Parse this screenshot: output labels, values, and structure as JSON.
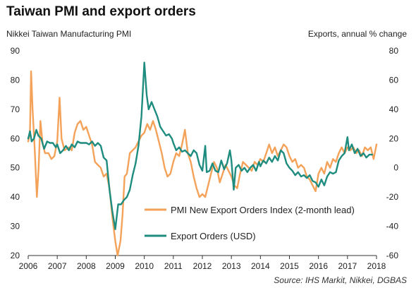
{
  "chart_data": {
    "type": "line",
    "title": "Taiwan PMI and export orders",
    "left_axis_label": "Nikkei Taiwan Manufacturing PMI",
    "right_axis_label": "Exports, annual % change",
    "source": "Source: IHS Markit, Nikkei, DGBAS",
    "x_ticks": [
      "2006",
      "2007",
      "2008",
      "2009",
      "2010",
      "2011",
      "2012",
      "2013",
      "2014",
      "2015",
      "2016",
      "2017",
      "2018"
    ],
    "y_left_ticks": [
      "90",
      "80",
      "70",
      "60",
      "50",
      "40",
      "30",
      "20"
    ],
    "y_right_ticks": [
      "80",
      "60",
      "40",
      "20",
      "0",
      "-20",
      "-40",
      "-60"
    ],
    "y_left_range": [
      20,
      90
    ],
    "y_right_range": [
      -60,
      80
    ],
    "x_range": [
      2006.0,
      2018.0
    ],
    "grid": false,
    "legend_position": "bottom-center",
    "series": [
      {
        "name": "PMI New Export Orders Index (2-month lead)",
        "axis": "left",
        "color": "#F4A259",
        "points": [
          [
            2006.0,
            59.0
          ],
          [
            2006.06,
            62.0
          ],
          [
            2006.1,
            83.0
          ],
          [
            2006.15,
            70.0
          ],
          [
            2006.22,
            57.0
          ],
          [
            2006.3,
            40.0
          ],
          [
            2006.36,
            50.0
          ],
          [
            2006.42,
            66.0
          ],
          [
            2006.5,
            58.0
          ],
          [
            2006.58,
            55.0
          ],
          [
            2006.7,
            55.0
          ],
          [
            2006.8,
            53.0
          ],
          [
            2006.9,
            54.0
          ],
          [
            2007.0,
            59.0
          ],
          [
            2007.08,
            74.0
          ],
          [
            2007.15,
            60.0
          ],
          [
            2007.25,
            56.0
          ],
          [
            2007.4,
            57.0
          ],
          [
            2007.5,
            56.0
          ],
          [
            2007.6,
            62.0
          ],
          [
            2007.7,
            65.0
          ],
          [
            2007.8,
            66.0
          ],
          [
            2007.9,
            63.0
          ],
          [
            2008.0,
            64.0
          ],
          [
            2008.1,
            61.0
          ],
          [
            2008.2,
            58.0
          ],
          [
            2008.3,
            52.0
          ],
          [
            2008.4,
            51.0
          ],
          [
            2008.5,
            50.0
          ],
          [
            2008.6,
            47.0
          ],
          [
            2008.7,
            48.0
          ],
          [
            2008.8,
            43.0
          ],
          [
            2008.9,
            33.0
          ],
          [
            2009.0,
            25.0
          ],
          [
            2009.08,
            20.0
          ],
          [
            2009.18,
            25.0
          ],
          [
            2009.25,
            34.0
          ],
          [
            2009.32,
            47.0
          ],
          [
            2009.4,
            48.0
          ],
          [
            2009.5,
            55.0
          ],
          [
            2009.6,
            56.0
          ],
          [
            2009.7,
            57.0
          ],
          [
            2009.8,
            59.0
          ],
          [
            2009.9,
            61.0
          ],
          [
            2010.0,
            62.0
          ],
          [
            2010.1,
            65.0
          ],
          [
            2010.2,
            63.0
          ],
          [
            2010.3,
            66.0
          ],
          [
            2010.4,
            63.0
          ],
          [
            2010.5,
            59.0
          ],
          [
            2010.6,
            55.0
          ],
          [
            2010.7,
            50.0
          ],
          [
            2010.8,
            47.0
          ],
          [
            2010.9,
            48.0
          ],
          [
            2011.0,
            52.0
          ],
          [
            2011.1,
            55.0
          ],
          [
            2011.2,
            54.0
          ],
          [
            2011.3,
            58.0
          ],
          [
            2011.4,
            63.0
          ],
          [
            2011.5,
            55.0
          ],
          [
            2011.6,
            52.0
          ],
          [
            2011.7,
            47.0
          ],
          [
            2011.8,
            43.0
          ],
          [
            2011.9,
            40.0
          ],
          [
            2012.0,
            41.0
          ],
          [
            2012.1,
            40.0
          ],
          [
            2012.2,
            44.0
          ],
          [
            2012.3,
            48.0
          ],
          [
            2012.4,
            52.0
          ],
          [
            2012.5,
            50.0
          ],
          [
            2012.6,
            45.0
          ],
          [
            2012.7,
            48.0
          ],
          [
            2012.8,
            51.0
          ],
          [
            2012.9,
            49.0
          ],
          [
            2013.0,
            47.0
          ],
          [
            2013.1,
            44.0
          ],
          [
            2013.2,
            43.0
          ],
          [
            2013.3,
            48.0
          ],
          [
            2013.4,
            52.0
          ],
          [
            2013.5,
            51.0
          ],
          [
            2013.6,
            50.0
          ],
          [
            2013.7,
            49.0
          ],
          [
            2013.8,
            52.0
          ],
          [
            2013.9,
            51.0
          ],
          [
            2014.0,
            53.0
          ],
          [
            2014.1,
            52.0
          ],
          [
            2014.2,
            55.0
          ],
          [
            2014.3,
            58.0
          ],
          [
            2014.4,
            55.0
          ],
          [
            2014.5,
            57.0
          ],
          [
            2014.6,
            54.0
          ],
          [
            2014.7,
            56.0
          ],
          [
            2014.8,
            58.0
          ],
          [
            2014.9,
            57.0
          ],
          [
            2015.0,
            54.0
          ],
          [
            2015.1,
            52.0
          ],
          [
            2015.2,
            53.0
          ],
          [
            2015.3,
            50.0
          ],
          [
            2015.4,
            51.0
          ],
          [
            2015.5,
            50.0
          ],
          [
            2015.6,
            47.0
          ],
          [
            2015.7,
            46.0
          ],
          [
            2015.8,
            44.0
          ],
          [
            2015.9,
            42.0
          ],
          [
            2016.0,
            48.0
          ],
          [
            2016.1,
            50.0
          ],
          [
            2016.2,
            48.0
          ],
          [
            2016.3,
            52.0
          ],
          [
            2016.4,
            50.0
          ],
          [
            2016.5,
            53.0
          ],
          [
            2016.6,
            52.0
          ],
          [
            2016.7,
            55.0
          ],
          [
            2016.8,
            57.0
          ],
          [
            2016.9,
            55.0
          ],
          [
            2017.0,
            57.0
          ],
          [
            2017.1,
            56.0
          ],
          [
            2017.2,
            57.0
          ],
          [
            2017.3,
            55.0
          ],
          [
            2017.4,
            56.0
          ],
          [
            2017.5,
            54.0
          ],
          [
            2017.6,
            57.0
          ],
          [
            2017.7,
            56.0
          ],
          [
            2017.8,
            57.0
          ],
          [
            2017.9,
            53.0
          ],
          [
            2018.0,
            58.0
          ]
        ]
      },
      {
        "name": "Export Orders (USD)",
        "axis": "right",
        "color": "#1E8C7E",
        "points": [
          [
            2006.0,
            20.0
          ],
          [
            2006.06,
            25.0
          ],
          [
            2006.12,
            18.0
          ],
          [
            2006.2,
            20.0
          ],
          [
            2006.28,
            26.0
          ],
          [
            2006.35,
            22.0
          ],
          [
            2006.45,
            20.0
          ],
          [
            2006.55,
            13.0
          ],
          [
            2006.65,
            18.0
          ],
          [
            2006.75,
            17.0
          ],
          [
            2006.85,
            17.0
          ],
          [
            2006.95,
            14.0
          ],
          [
            2007.0,
            16.0
          ],
          [
            2007.1,
            10.0
          ],
          [
            2007.2,
            12.0
          ],
          [
            2007.3,
            15.0
          ],
          [
            2007.4,
            12.0
          ],
          [
            2007.5,
            16.0
          ],
          [
            2007.6,
            14.0
          ],
          [
            2007.7,
            18.0
          ],
          [
            2007.8,
            17.0
          ],
          [
            2007.9,
            17.0
          ],
          [
            2008.0,
            17.0
          ],
          [
            2008.1,
            16.0
          ],
          [
            2008.2,
            18.0
          ],
          [
            2008.3,
            15.0
          ],
          [
            2008.4,
            17.0
          ],
          [
            2008.5,
            15.0
          ],
          [
            2008.6,
            7.0
          ],
          [
            2008.7,
            5.0
          ],
          [
            2008.8,
            -15.0
          ],
          [
            2008.9,
            -30.0
          ],
          [
            2009.0,
            -42.0
          ],
          [
            2009.1,
            -25.0
          ],
          [
            2009.2,
            -25.0
          ],
          [
            2009.3,
            -22.0
          ],
          [
            2009.4,
            -20.0
          ],
          [
            2009.5,
            -15.0
          ],
          [
            2009.6,
            -5.0
          ],
          [
            2009.7,
            3.0
          ],
          [
            2009.8,
            15.0
          ],
          [
            2009.9,
            35.0
          ],
          [
            2010.0,
            72.0
          ],
          [
            2010.08,
            50.0
          ],
          [
            2010.15,
            40.0
          ],
          [
            2010.25,
            45.0
          ],
          [
            2010.35,
            40.0
          ],
          [
            2010.45,
            35.0
          ],
          [
            2010.55,
            28.0
          ],
          [
            2010.65,
            25.0
          ],
          [
            2010.75,
            22.0
          ],
          [
            2010.85,
            23.0
          ],
          [
            2010.95,
            20.0
          ],
          [
            2011.0,
            17.0
          ],
          [
            2011.1,
            12.0
          ],
          [
            2011.2,
            14.0
          ],
          [
            2011.3,
            11.0
          ],
          [
            2011.4,
            12.0
          ],
          [
            2011.5,
            10.0
          ],
          [
            2011.6,
            8.0
          ],
          [
            2011.7,
            12.0
          ],
          [
            2011.8,
            10.0
          ],
          [
            2011.9,
            2.0
          ],
          [
            2012.0,
            -2.0
          ],
          [
            2012.1,
            15.0
          ],
          [
            2012.15,
            -3.0
          ],
          [
            2012.25,
            -2.0
          ],
          [
            2012.35,
            3.0
          ],
          [
            2012.45,
            -2.0
          ],
          [
            2012.55,
            -3.0
          ],
          [
            2012.65,
            5.0
          ],
          [
            2012.75,
            -1.0
          ],
          [
            2012.85,
            3.0
          ],
          [
            2012.95,
            12.0
          ],
          [
            2013.0,
            5.0
          ],
          [
            2013.08,
            -15.0
          ],
          [
            2013.15,
            0.0
          ],
          [
            2013.25,
            2.0
          ],
          [
            2013.35,
            -2.0
          ],
          [
            2013.45,
            0.0
          ],
          [
            2013.55,
            -3.0
          ],
          [
            2013.65,
            0.0
          ],
          [
            2013.75,
            2.0
          ],
          [
            2013.85,
            -2.0
          ],
          [
            2013.95,
            4.0
          ],
          [
            2014.0,
            1.0
          ],
          [
            2014.1,
            5.0
          ],
          [
            2014.2,
            3.0
          ],
          [
            2014.3,
            7.0
          ],
          [
            2014.4,
            4.0
          ],
          [
            2014.5,
            8.0
          ],
          [
            2014.6,
            5.0
          ],
          [
            2014.7,
            12.0
          ],
          [
            2014.8,
            10.0
          ],
          [
            2014.9,
            3.0
          ],
          [
            2015.0,
            0.0
          ],
          [
            2015.1,
            -2.0
          ],
          [
            2015.2,
            -5.0
          ],
          [
            2015.3,
            -3.0
          ],
          [
            2015.4,
            -6.0
          ],
          [
            2015.5,
            -5.0
          ],
          [
            2015.6,
            -7.0
          ],
          [
            2015.7,
            -5.0
          ],
          [
            2015.8,
            -9.0
          ],
          [
            2015.9,
            -10.0
          ],
          [
            2016.0,
            -13.0
          ],
          [
            2016.1,
            -8.0
          ],
          [
            2016.2,
            -12.0
          ],
          [
            2016.3,
            -6.0
          ],
          [
            2016.4,
            -3.0
          ],
          [
            2016.5,
            -4.0
          ],
          [
            2016.6,
            -3.0
          ],
          [
            2016.7,
            5.0
          ],
          [
            2016.8,
            8.0
          ],
          [
            2016.9,
            10.0
          ],
          [
            2017.0,
            21.0
          ],
          [
            2017.05,
            12.0
          ],
          [
            2017.15,
            16.0
          ],
          [
            2017.25,
            10.0
          ],
          [
            2017.35,
            13.0
          ],
          [
            2017.45,
            8.0
          ],
          [
            2017.55,
            10.0
          ],
          [
            2017.65,
            7.0
          ],
          [
            2017.75,
            9.0
          ],
          [
            2017.85,
            9.0
          ]
        ]
      }
    ]
  }
}
